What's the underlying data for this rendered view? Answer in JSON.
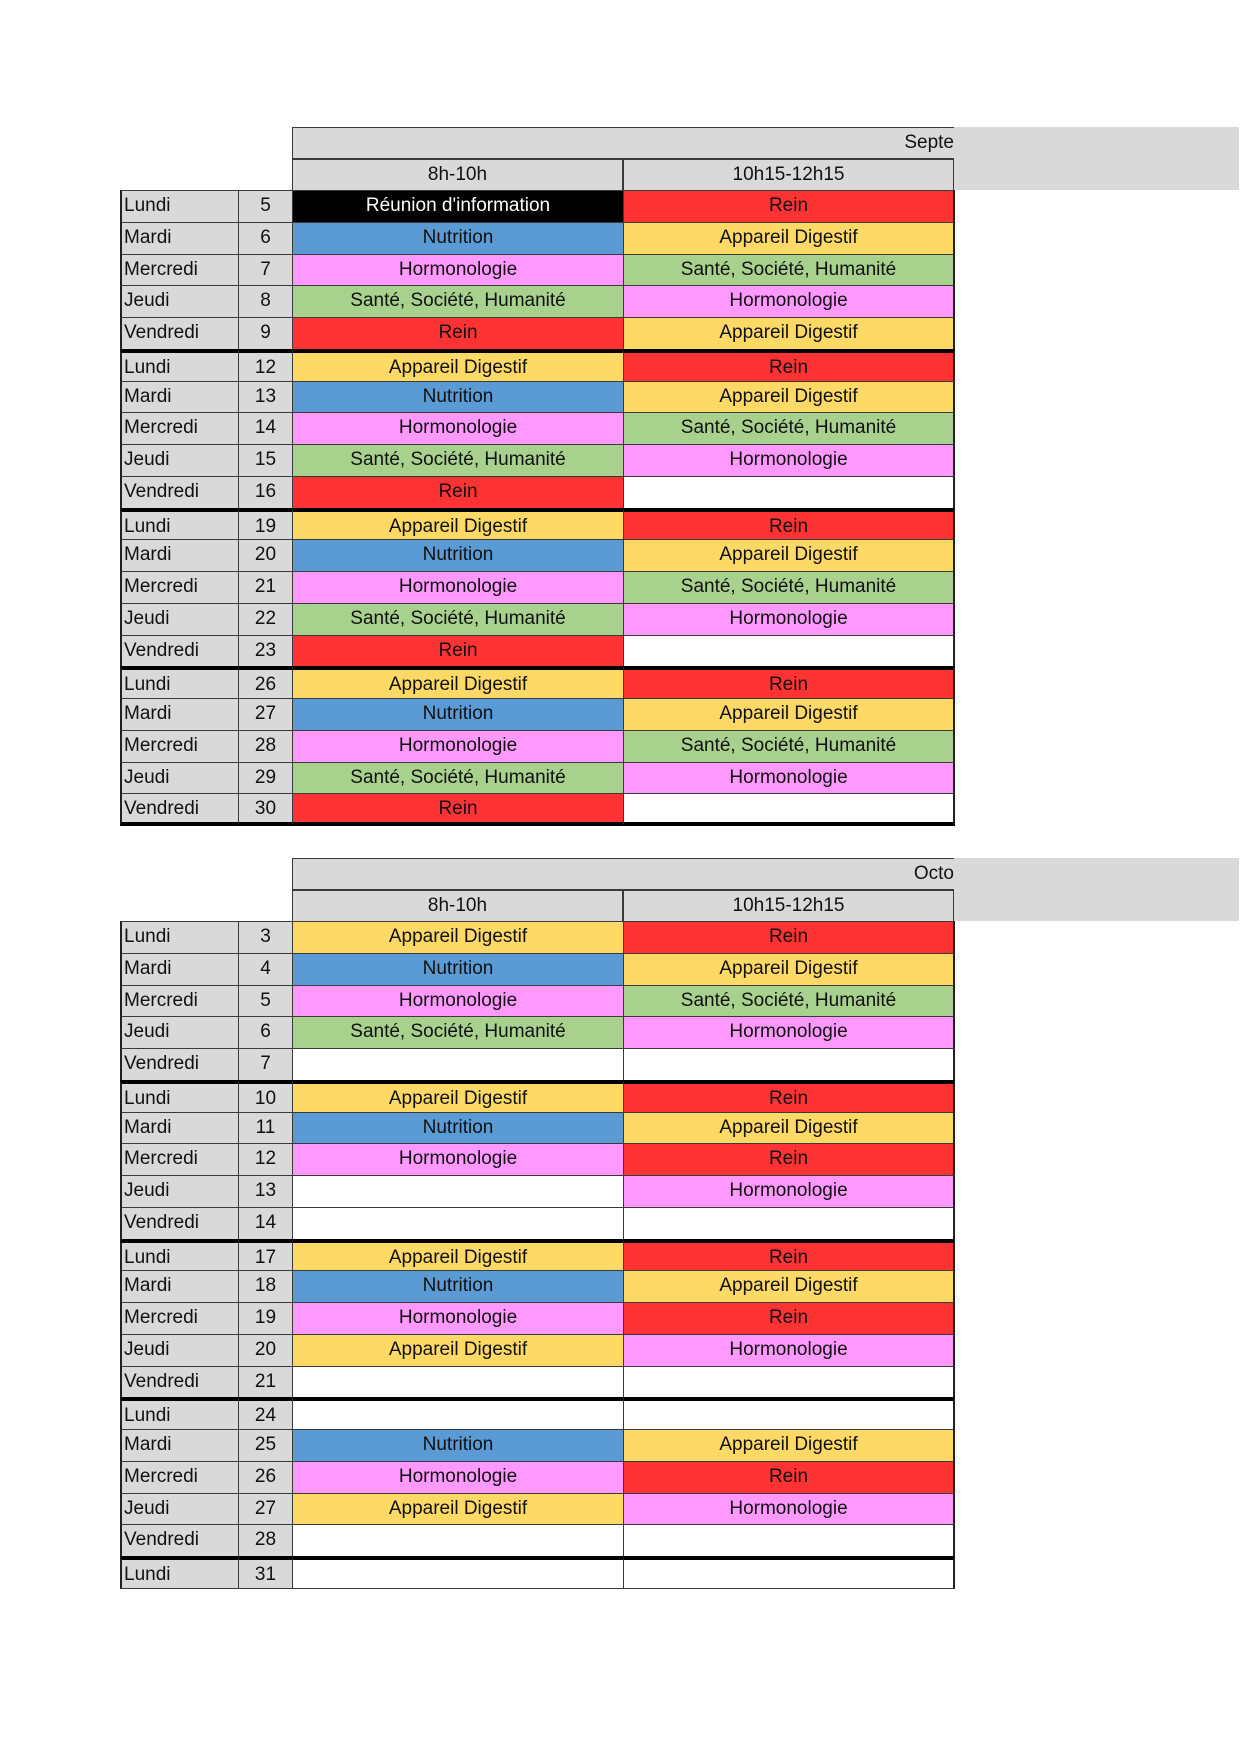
{
  "sections": [
    {
      "title": "Septe",
      "slots": [
        "8h-10h",
        "10h15-12h15"
      ],
      "weeks": [
        {
          "rows": [
            {
              "day": "Lundi",
              "num": 5,
              "am": {
                "text": "Réunion d'information",
                "bg": "#000000",
                "fg": "#ffffff"
              },
              "pm": {
                "text": "Rein",
                "bg": "#ff3333"
              }
            },
            {
              "day": "Mardi",
              "num": 6,
              "am": {
                "text": "Nutrition",
                "bg": "#5b9bd5"
              },
              "pm": {
                "text": "Appareil Digestif",
                "bg": "#ffd966"
              }
            },
            {
              "day": "Mercredi",
              "num": 7,
              "am": {
                "text": "Hormonologie",
                "bg": "#ff99ff"
              },
              "pm": {
                "text": "Santé, Société, Humanité",
                "bg": "#a9d18e"
              }
            },
            {
              "day": "Jeudi",
              "num": 8,
              "am": {
                "text": "Santé, Société, Humanité",
                "bg": "#a9d18e"
              },
              "pm": {
                "text": "Hormonologie",
                "bg": "#ff99ff"
              }
            },
            {
              "day": "Vendredi",
              "num": 9,
              "am": {
                "text": "Rein",
                "bg": "#ff3333"
              },
              "pm": {
                "text": "Appareil Digestif",
                "bg": "#ffd966"
              }
            }
          ]
        },
        {
          "rows": [
            {
              "day": "Lundi",
              "num": 12,
              "am": {
                "text": "Appareil Digestif",
                "bg": "#ffd966"
              },
              "pm": {
                "text": "Rein",
                "bg": "#ff3333"
              }
            },
            {
              "day": "Mardi",
              "num": 13,
              "am": {
                "text": "Nutrition",
                "bg": "#5b9bd5"
              },
              "pm": {
                "text": "Appareil Digestif",
                "bg": "#ffd966"
              }
            },
            {
              "day": "Mercredi",
              "num": 14,
              "am": {
                "text": "Hormonologie",
                "bg": "#ff99ff"
              },
              "pm": {
                "text": "Santé, Société, Humanité",
                "bg": "#a9d18e"
              }
            },
            {
              "day": "Jeudi",
              "num": 15,
              "am": {
                "text": "Santé, Société, Humanité",
                "bg": "#a9d18e"
              },
              "pm": {
                "text": "Hormonologie",
                "bg": "#ff99ff"
              }
            },
            {
              "day": "Vendredi",
              "num": 16,
              "am": {
                "text": "Rein",
                "bg": "#ff3333"
              },
              "pm": null
            }
          ]
        },
        {
          "rows": [
            {
              "day": "Lundi",
              "num": 19,
              "am": {
                "text": "Appareil Digestif",
                "bg": "#ffd966"
              },
              "pm": {
                "text": "Rein",
                "bg": "#ff3333"
              }
            },
            {
              "day": "Mardi",
              "num": 20,
              "am": {
                "text": "Nutrition",
                "bg": "#5b9bd5"
              },
              "pm": {
                "text": "Appareil Digestif",
                "bg": "#ffd966"
              }
            },
            {
              "day": "Mercredi",
              "num": 21,
              "am": {
                "text": "Hormonologie",
                "bg": "#ff99ff"
              },
              "pm": {
                "text": "Santé, Société, Humanité",
                "bg": "#a9d18e"
              }
            },
            {
              "day": "Jeudi",
              "num": 22,
              "am": {
                "text": "Santé, Société, Humanité",
                "bg": "#a9d18e"
              },
              "pm": {
                "text": "Hormonologie",
                "bg": "#ff99ff"
              }
            },
            {
              "day": "Vendredi",
              "num": 23,
              "am": {
                "text": "Rein",
                "bg": "#ff3333"
              },
              "pm": null
            }
          ]
        },
        {
          "rows": [
            {
              "day": "Lundi",
              "num": 26,
              "am": {
                "text": "Appareil Digestif",
                "bg": "#ffd966"
              },
              "pm": {
                "text": "Rein",
                "bg": "#ff3333"
              }
            },
            {
              "day": "Mardi",
              "num": 27,
              "am": {
                "text": "Nutrition",
                "bg": "#5b9bd5"
              },
              "pm": {
                "text": "Appareil Digestif",
                "bg": "#ffd966"
              }
            },
            {
              "day": "Mercredi",
              "num": 28,
              "am": {
                "text": "Hormonologie",
                "bg": "#ff99ff"
              },
              "pm": {
                "text": "Santé, Société, Humanité",
                "bg": "#a9d18e"
              }
            },
            {
              "day": "Jeudi",
              "num": 29,
              "am": {
                "text": "Santé, Société, Humanité",
                "bg": "#a9d18e"
              },
              "pm": {
                "text": "Hormonologie",
                "bg": "#ff99ff"
              }
            },
            {
              "day": "Vendredi",
              "num": 30,
              "am": {
                "text": "Rein",
                "bg": "#ff3333"
              },
              "pm": null
            }
          ]
        }
      ]
    },
    {
      "title": "Octo",
      "slots": [
        "8h-10h",
        "10h15-12h15"
      ],
      "weeks": [
        {
          "rows": [
            {
              "day": "Lundi",
              "num": 3,
              "am": {
                "text": "Appareil Digestif",
                "bg": "#ffd966"
              },
              "pm": {
                "text": "Rein",
                "bg": "#ff3333"
              }
            },
            {
              "day": "Mardi",
              "num": 4,
              "am": {
                "text": "Nutrition",
                "bg": "#5b9bd5"
              },
              "pm": {
                "text": "Appareil Digestif",
                "bg": "#ffd966"
              }
            },
            {
              "day": "Mercredi",
              "num": 5,
              "am": {
                "text": "Hormonologie",
                "bg": "#ff99ff"
              },
              "pm": {
                "text": "Santé, Société, Humanité",
                "bg": "#a9d18e"
              }
            },
            {
              "day": "Jeudi",
              "num": 6,
              "am": {
                "text": "Santé, Société, Humanité",
                "bg": "#a9d18e"
              },
              "pm": {
                "text": "Hormonologie",
                "bg": "#ff99ff"
              }
            },
            {
              "day": "Vendredi",
              "num": 7,
              "am": null,
              "pm": null
            }
          ]
        },
        {
          "rows": [
            {
              "day": "Lundi",
              "num": 10,
              "am": {
                "text": "Appareil Digestif",
                "bg": "#ffd966"
              },
              "pm": {
                "text": "Rein",
                "bg": "#ff3333"
              }
            },
            {
              "day": "Mardi",
              "num": 11,
              "am": {
                "text": "Nutrition",
                "bg": "#5b9bd5"
              },
              "pm": {
                "text": "Appareil Digestif",
                "bg": "#ffd966"
              }
            },
            {
              "day": "Mercredi",
              "num": 12,
              "am": {
                "text": "Hormonologie",
                "bg": "#ff99ff"
              },
              "pm": {
                "text": "Rein",
                "bg": "#ff3333"
              }
            },
            {
              "day": "Jeudi",
              "num": 13,
              "am": null,
              "pm": {
                "text": "Hormonologie",
                "bg": "#ff99ff"
              }
            },
            {
              "day": "Vendredi",
              "num": 14,
              "am": null,
              "pm": null
            }
          ]
        },
        {
          "rows": [
            {
              "day": "Lundi",
              "num": 17,
              "am": {
                "text": "Appareil Digestif",
                "bg": "#ffd966"
              },
              "pm": {
                "text": "Rein",
                "bg": "#ff3333"
              }
            },
            {
              "day": "Mardi",
              "num": 18,
              "am": {
                "text": "Nutrition",
                "bg": "#5b9bd5"
              },
              "pm": {
                "text": "Appareil Digestif",
                "bg": "#ffd966"
              }
            },
            {
              "day": "Mercredi",
              "num": 19,
              "am": {
                "text": "Hormonologie",
                "bg": "#ff99ff"
              },
              "pm": {
                "text": "Rein",
                "bg": "#ff3333"
              }
            },
            {
              "day": "Jeudi",
              "num": 20,
              "am": {
                "text": "Appareil Digestif",
                "bg": "#ffd966"
              },
              "pm": {
                "text": "Hormonologie",
                "bg": "#ff99ff"
              }
            },
            {
              "day": "Vendredi",
              "num": 21,
              "am": null,
              "pm": null
            }
          ]
        },
        {
          "rows": [
            {
              "day": "Lundi",
              "num": 24,
              "am": null,
              "pm": null
            },
            {
              "day": "Mardi",
              "num": 25,
              "am": {
                "text": "Nutrition",
                "bg": "#5b9bd5"
              },
              "pm": {
                "text": "Appareil Digestif",
                "bg": "#ffd966"
              }
            },
            {
              "day": "Mercredi",
              "num": 26,
              "am": {
                "text": "Hormonologie",
                "bg": "#ff99ff"
              },
              "pm": {
                "text": "Rein",
                "bg": "#ff3333"
              }
            },
            {
              "day": "Jeudi",
              "num": 27,
              "am": {
                "text": "Appareil Digestif",
                "bg": "#ffd966"
              },
              "pm": {
                "text": "Hormonologie",
                "bg": "#ff99ff"
              }
            },
            {
              "day": "Vendredi",
              "num": 28,
              "am": null,
              "pm": null
            }
          ]
        },
        {
          "rows": [
            {
              "day": "Lundi",
              "num": 31,
              "am": null,
              "pm": null
            }
          ]
        }
      ]
    }
  ]
}
